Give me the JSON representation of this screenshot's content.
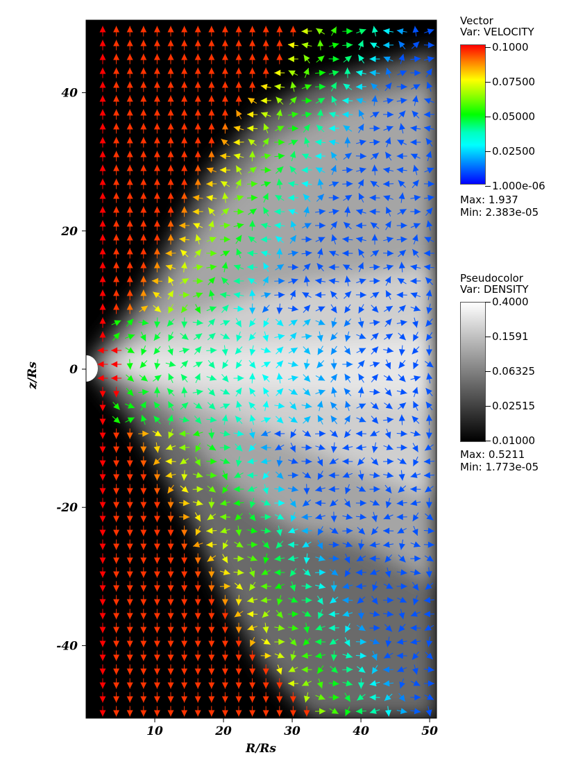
{
  "chart_data": {
    "type": "vector_field_over_pseudocolor",
    "xlabel": "R/Rs",
    "ylabel": "z/Rs",
    "xlim": [
      0,
      51
    ],
    "ylim": [
      -50.5,
      50.5
    ],
    "x_ticks": [
      10,
      20,
      30,
      40,
      50
    ],
    "y_ticks": [
      40,
      20,
      0,
      -20,
      -40
    ],
    "x_tick_labels": [
      "10",
      "20",
      "30",
      "40",
      "50"
    ],
    "y_tick_labels": [
      "40",
      "20",
      "0",
      "-20",
      "-40"
    ],
    "grid": false,
    "legends": [
      {
        "plot": "Vector",
        "var": "Var: VELOCITY",
        "colormap": [
          "#0000ff",
          "#00ffff",
          "#00ff00",
          "#ffff00",
          "#ff0000"
        ],
        "tick_labels": [
          "0.1000",
          "0.07500",
          "0.05000",
          "0.02500",
          "1.000e-06"
        ],
        "max": "Max:  1.937",
        "min": "Min:  2.383e-05"
      },
      {
        "plot": "Pseudocolor",
        "var": "Var: DENSITY",
        "colormap": [
          "#000000",
          "#ffffff"
        ],
        "scale": "log",
        "tick_labels": [
          "0.4000",
          "0.1591",
          "0.06325",
          "0.02515",
          "0.01000"
        ],
        "max": "Max:  0.5211",
        "min": "Min:  1.773e-05"
      }
    ]
  }
}
